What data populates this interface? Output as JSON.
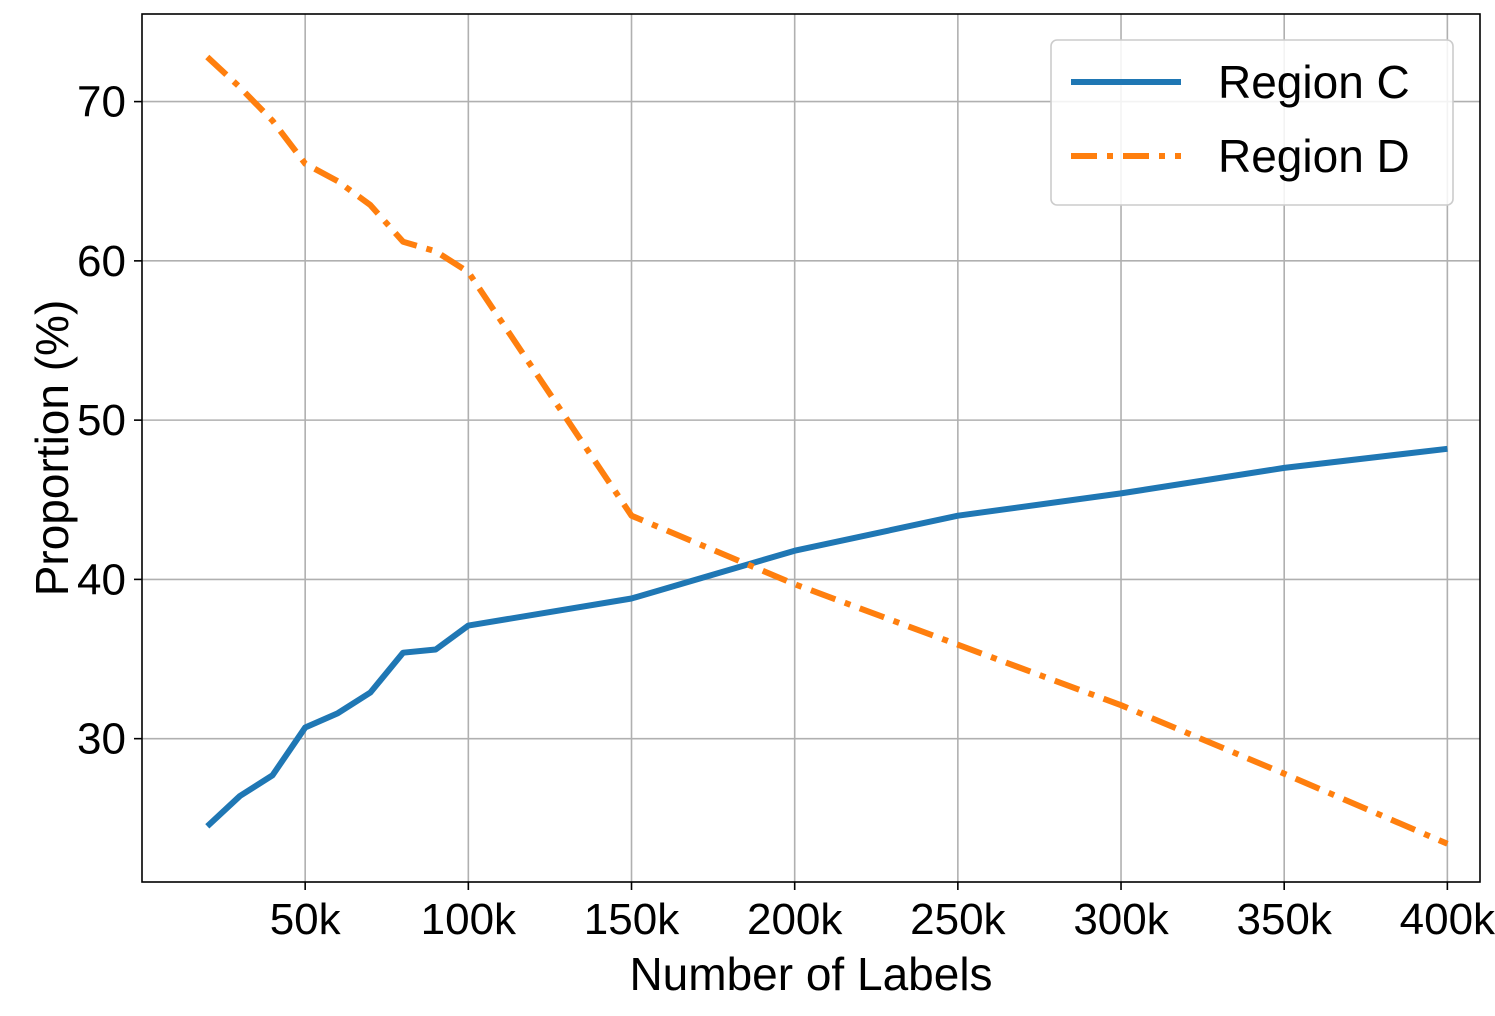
{
  "chart_data": {
    "type": "line",
    "xlabel": "Number of Labels",
    "ylabel": "Proportion (%)",
    "xlim": [
      0,
      410000
    ],
    "ylim": [
      21,
      75.5
    ],
    "grid": true,
    "legend_position": "top-right",
    "x_ticks": [
      {
        "value": 50000,
        "label": "50k"
      },
      {
        "value": 100000,
        "label": "100k"
      },
      {
        "value": 150000,
        "label": "150k"
      },
      {
        "value": 200000,
        "label": "200k"
      },
      {
        "value": 250000,
        "label": "250k"
      },
      {
        "value": 300000,
        "label": "300k"
      },
      {
        "value": 350000,
        "label": "350k"
      },
      {
        "value": 400000,
        "label": "400k"
      }
    ],
    "y_ticks": [
      {
        "value": 30,
        "label": "30"
      },
      {
        "value": 40,
        "label": "40"
      },
      {
        "value": 50,
        "label": "50"
      },
      {
        "value": 60,
        "label": "60"
      },
      {
        "value": 70,
        "label": "70"
      }
    ],
    "x": [
      20000,
      30000,
      40000,
      50000,
      60000,
      70000,
      80000,
      90000,
      100000,
      150000,
      200000,
      250000,
      300000,
      350000,
      400000
    ],
    "series": [
      {
        "name": "Region C",
        "color": "#1f77b4",
        "style": "solid",
        "values": [
          24.5,
          26.4,
          27.7,
          30.7,
          31.6,
          32.9,
          35.4,
          35.6,
          37.1,
          38.8,
          41.8,
          44.0,
          45.4,
          47.0,
          48.2
        ]
      },
      {
        "name": "Region D",
        "color": "#ff7f0e",
        "style": "dashdot",
        "values": [
          72.8,
          70.9,
          68.8,
          66.1,
          65.0,
          63.5,
          61.2,
          60.6,
          59.3,
          44.0,
          39.7,
          35.9,
          32.1,
          27.8,
          23.4
        ]
      }
    ]
  }
}
